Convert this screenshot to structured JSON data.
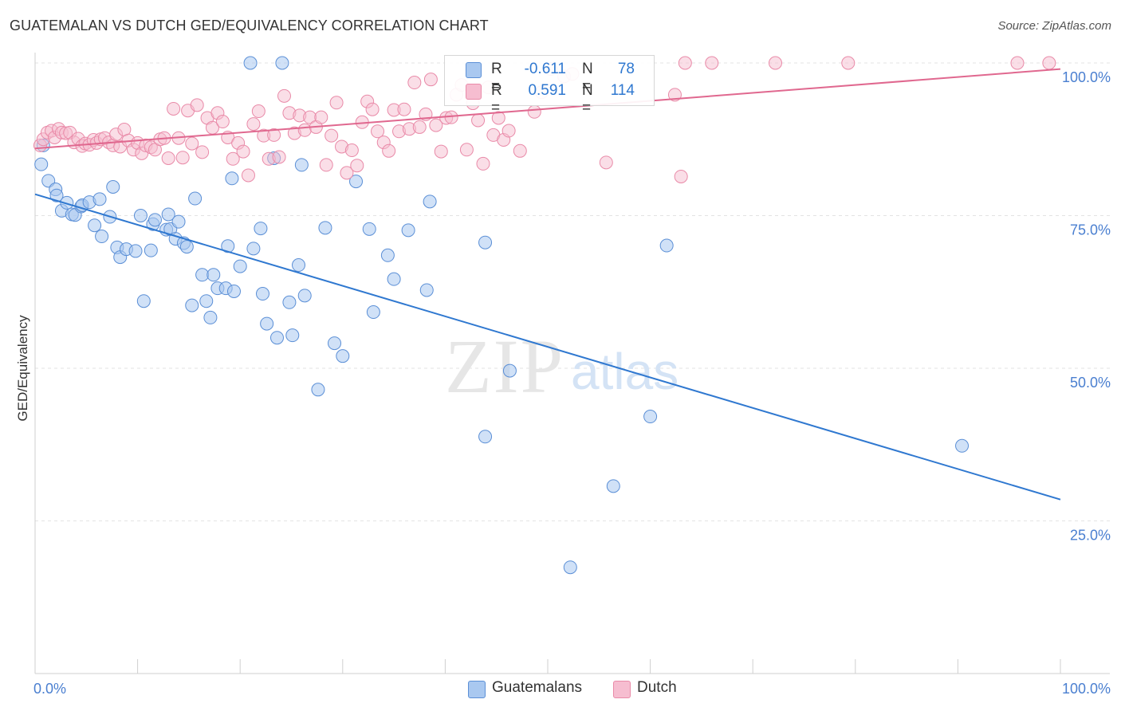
{
  "header": {
    "title": "GUATEMALAN VS DUTCH GED/EQUIVALENCY CORRELATION CHART",
    "source": "Source: ZipAtlas.com"
  },
  "watermark": {
    "zip": "ZIP",
    "atlas": "atlas"
  },
  "colors": {
    "blue": "#5b8fd6",
    "blue_fill": "#a9c8f0",
    "blue_line": "#2f78d0",
    "pink": "#e98aa8",
    "pink_fill": "#f6bdd0",
    "pink_line": "#e0688f",
    "tick_label": "#4a7fd0",
    "grid": "#e3e3e3"
  },
  "legend": {
    "rows": [
      {
        "r_label": "R =",
        "r_value": "-0.611",
        "n_label": "N =",
        "n_value": "78"
      },
      {
        "r_label": "R =",
        "r_value": "0.591",
        "n_label": "N =",
        "n_value": "114"
      }
    ]
  },
  "chart_data": {
    "type": "scatter",
    "xlabel": "",
    "ylabel": "GED/Equivalency",
    "xlim": [
      0,
      100
    ],
    "ylim": [
      0,
      100
    ],
    "x_tick_labels": [
      "0.0%",
      "100.0%"
    ],
    "y_tick_labels": [
      "25.0%",
      "50.0%",
      "75.0%",
      "100.0%"
    ],
    "y_ticks": [
      25,
      50,
      75,
      100
    ],
    "grid": true,
    "legend_position": "bottom-center",
    "series": [
      {
        "name": "Guatemalans",
        "trend": {
          "x": [
            0,
            100
          ],
          "y": [
            78.5,
            28.5
          ]
        },
        "points": [
          [
            0.8,
            86.5
          ],
          [
            0.6,
            83.4
          ],
          [
            1.3,
            80.7
          ],
          [
            2.0,
            79.3
          ],
          [
            2.1,
            78.3
          ],
          [
            2.6,
            75.8
          ],
          [
            3.1,
            77.1
          ],
          [
            3.6,
            75.2
          ],
          [
            3.9,
            75.1
          ],
          [
            4.5,
            76.5
          ],
          [
            4.6,
            76.7
          ],
          [
            5.3,
            77.2
          ],
          [
            6.3,
            77.7
          ],
          [
            5.8,
            73.4
          ],
          [
            6.5,
            71.6
          ],
          [
            7.3,
            74.8
          ],
          [
            7.6,
            79.7
          ],
          [
            8.0,
            69.8
          ],
          [
            8.3,
            68.2
          ],
          [
            8.9,
            69.5
          ],
          [
            9.8,
            69.2
          ],
          [
            10.3,
            75.0
          ],
          [
            10.6,
            61.0
          ],
          [
            11.3,
            69.3
          ],
          [
            11.5,
            73.6
          ],
          [
            11.7,
            74.3
          ],
          [
            12.8,
            72.7
          ],
          [
            13.0,
            75.2
          ],
          [
            13.2,
            72.8
          ],
          [
            13.7,
            71.2
          ],
          [
            14.0,
            74.0
          ],
          [
            14.5,
            70.5
          ],
          [
            14.8,
            69.9
          ],
          [
            15.3,
            60.3
          ],
          [
            15.6,
            77.8
          ],
          [
            16.3,
            65.3
          ],
          [
            16.7,
            61.0
          ],
          [
            17.1,
            58.3
          ],
          [
            17.4,
            65.3
          ],
          [
            17.8,
            63.1
          ],
          [
            18.6,
            63.1
          ],
          [
            18.8,
            70.0
          ],
          [
            19.2,
            81.1
          ],
          [
            19.4,
            62.6
          ],
          [
            20.0,
            66.7
          ],
          [
            21.0,
            100.0
          ],
          [
            21.3,
            69.6
          ],
          [
            22.0,
            72.9
          ],
          [
            22.2,
            62.2
          ],
          [
            22.6,
            57.3
          ],
          [
            23.3,
            84.4
          ],
          [
            23.6,
            55.0
          ],
          [
            24.1,
            100.0
          ],
          [
            24.8,
            60.8
          ],
          [
            25.1,
            55.4
          ],
          [
            25.7,
            66.9
          ],
          [
            26.0,
            83.3
          ],
          [
            26.3,
            61.9
          ],
          [
            27.6,
            46.5
          ],
          [
            28.3,
            73.0
          ],
          [
            29.2,
            54.1
          ],
          [
            30.0,
            52.0
          ],
          [
            31.3,
            80.6
          ],
          [
            32.6,
            72.8
          ],
          [
            33.0,
            59.2
          ],
          [
            34.4,
            68.5
          ],
          [
            35.0,
            64.6
          ],
          [
            36.4,
            72.6
          ],
          [
            38.2,
            62.8
          ],
          [
            38.5,
            77.3
          ],
          [
            43.9,
            38.8
          ],
          [
            43.9,
            70.6
          ],
          [
            46.3,
            49.6
          ],
          [
            52.2,
            17.4
          ],
          [
            56.4,
            30.7
          ],
          [
            60.0,
            42.1
          ],
          [
            61.6,
            70.1
          ],
          [
            90.4,
            37.3
          ]
        ]
      },
      {
        "name": "Dutch",
        "trend": {
          "x": [
            0,
            100
          ],
          "y": [
            86.0,
            99.0
          ]
        },
        "points": [
          [
            0.5,
            86.5
          ],
          [
            0.8,
            87.5
          ],
          [
            1.2,
            88.6
          ],
          [
            1.6,
            88.9
          ],
          [
            1.9,
            87.8
          ],
          [
            2.3,
            89.2
          ],
          [
            2.6,
            88.6
          ],
          [
            3.0,
            88.5
          ],
          [
            3.4,
            88.6
          ],
          [
            3.8,
            87.0
          ],
          [
            4.2,
            87.6
          ],
          [
            4.6,
            86.4
          ],
          [
            4.9,
            86.8
          ],
          [
            5.3,
            86.6
          ],
          [
            5.7,
            87.4
          ],
          [
            6.0,
            86.9
          ],
          [
            6.4,
            87.5
          ],
          [
            6.8,
            87.7
          ],
          [
            7.2,
            87.0
          ],
          [
            7.6,
            86.5
          ],
          [
            7.9,
            88.3
          ],
          [
            8.3,
            86.3
          ],
          [
            8.7,
            89.1
          ],
          [
            9.1,
            87.3
          ],
          [
            9.6,
            85.8
          ],
          [
            10.0,
            86.9
          ],
          [
            10.4,
            85.2
          ],
          [
            10.8,
            86.5
          ],
          [
            11.3,
            86.2
          ],
          [
            11.7,
            85.8
          ],
          [
            12.2,
            87.5
          ],
          [
            12.6,
            87.7
          ],
          [
            13.0,
            84.4
          ],
          [
            13.5,
            92.5
          ],
          [
            14.0,
            87.7
          ],
          [
            14.4,
            84.5
          ],
          [
            14.9,
            92.2
          ],
          [
            15.3,
            86.8
          ],
          [
            15.8,
            93.1
          ],
          [
            16.3,
            85.4
          ],
          [
            16.8,
            91.0
          ],
          [
            17.3,
            89.4
          ],
          [
            17.8,
            91.8
          ],
          [
            18.3,
            90.4
          ],
          [
            18.8,
            87.8
          ],
          [
            19.3,
            84.3
          ],
          [
            19.8,
            86.9
          ],
          [
            20.3,
            85.5
          ],
          [
            20.8,
            81.6
          ],
          [
            21.3,
            90.0
          ],
          [
            21.8,
            92.1
          ],
          [
            22.3,
            88.1
          ],
          [
            22.8,
            84.3
          ],
          [
            23.3,
            88.2
          ],
          [
            23.8,
            84.6
          ],
          [
            24.3,
            94.6
          ],
          [
            24.8,
            91.8
          ],
          [
            25.3,
            88.5
          ],
          [
            25.8,
            91.4
          ],
          [
            26.3,
            89.0
          ],
          [
            26.8,
            91.1
          ],
          [
            27.4,
            89.5
          ],
          [
            27.9,
            91.1
          ],
          [
            28.4,
            83.3
          ],
          [
            28.9,
            88.1
          ],
          [
            29.4,
            93.5
          ],
          [
            29.9,
            86.3
          ],
          [
            30.4,
            82.0
          ],
          [
            30.9,
            85.7
          ],
          [
            31.4,
            83.2
          ],
          [
            31.9,
            90.3
          ],
          [
            32.4,
            93.7
          ],
          [
            32.9,
            92.4
          ],
          [
            33.4,
            88.8
          ],
          [
            34.0,
            87.0
          ],
          [
            34.5,
            85.6
          ],
          [
            35.0,
            92.3
          ],
          [
            35.5,
            88.8
          ],
          [
            36.0,
            92.4
          ],
          [
            36.5,
            89.2
          ],
          [
            37.0,
            96.8
          ],
          [
            37.5,
            89.5
          ],
          [
            38.1,
            91.6
          ],
          [
            38.6,
            97.3
          ],
          [
            39.1,
            89.8
          ],
          [
            39.6,
            85.5
          ],
          [
            40.1,
            91.0
          ],
          [
            40.6,
            91.1
          ],
          [
            41.1,
            94.8
          ],
          [
            41.6,
            96.4
          ],
          [
            42.1,
            85.8
          ],
          [
            42.7,
            93.4
          ],
          [
            43.2,
            90.6
          ],
          [
            43.7,
            83.5
          ],
          [
            44.2,
            96.0
          ],
          [
            44.7,
            88.2
          ],
          [
            45.2,
            91.0
          ],
          [
            45.7,
            87.4
          ],
          [
            46.2,
            88.9
          ],
          [
            47.3,
            85.6
          ],
          [
            48.7,
            92.0
          ],
          [
            49.4,
            95.2
          ],
          [
            50.3,
            99.0
          ],
          [
            51.6,
            97.8
          ],
          [
            52.4,
            98.2
          ],
          [
            55.7,
            83.7
          ],
          [
            62.4,
            94.8
          ],
          [
            63.0,
            81.4
          ],
          [
            63.4,
            100.0
          ],
          [
            66.0,
            100.0
          ],
          [
            72.2,
            100.0
          ],
          [
            79.3,
            100.0
          ],
          [
            95.8,
            100.0
          ],
          [
            98.9,
            100.0
          ]
        ]
      }
    ]
  }
}
